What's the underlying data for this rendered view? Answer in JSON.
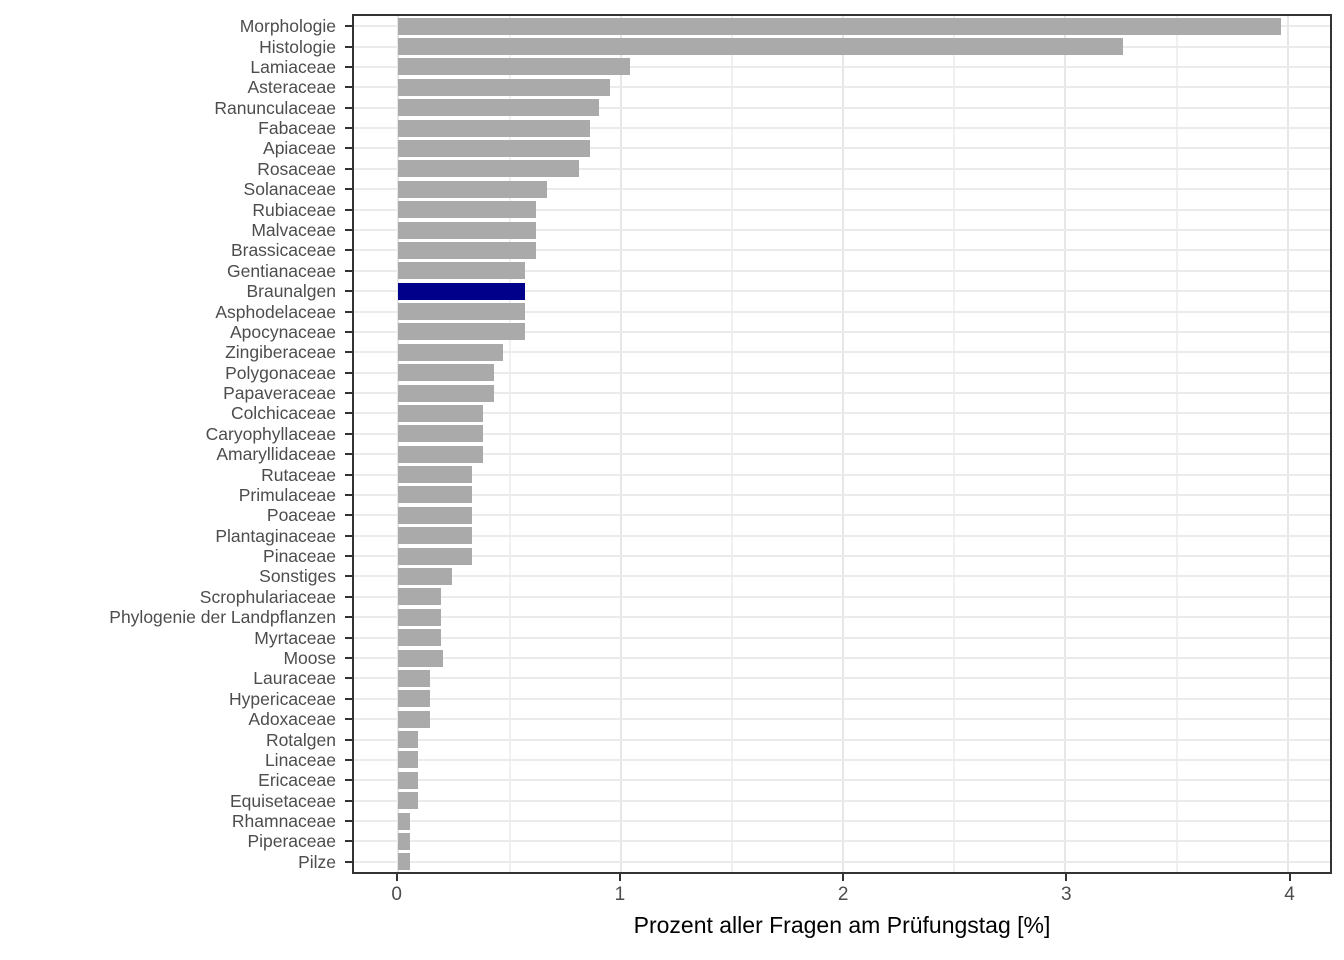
{
  "chart_data": {
    "type": "bar",
    "orientation": "horizontal",
    "title": "",
    "xlabel": "Prozent aller Fragen am Prüfungstag [%]",
    "ylabel": "",
    "xlim": [
      -0.2,
      4.19
    ],
    "x_ticks": [
      0,
      1,
      2,
      3,
      4
    ],
    "x_minor_ticks": [
      0.5,
      1.5,
      2.5,
      3.5
    ],
    "grid": true,
    "legend": "none",
    "bar_color": "#aaaaaa",
    "highlight_color": "#00008b",
    "highlighted_category": "Braunalgen",
    "categories": [
      "Morphologie",
      "Histologie",
      "Lamiaceae",
      "Asteraceae",
      "Ranunculaceae",
      "Fabaceae",
      "Apiaceae",
      "Rosaceae",
      "Solanaceae",
      "Rubiaceae",
      "Malvaceae",
      "Brassicaceae",
      "Gentianaceae",
      "Braunalgen",
      "Asphodelaceae",
      "Apocynaceae",
      "Zingiberaceae",
      "Polygonaceae",
      "Papaveraceae",
      "Colchicaceae",
      "Caryophyllaceae",
      "Amaryllidaceae",
      "Rutaceae",
      "Primulaceae",
      "Poaceae",
      "Plantaginaceae",
      "Pinaceae",
      "Sonstiges",
      "Scrophulariaceae",
      "Phylogenie der Landpflanzen",
      "Myrtaceae",
      "Moose",
      "Lauraceae",
      "Hypericaceae",
      "Adoxaceae",
      "Rotalgen",
      "Linaceae",
      "Ericaceae",
      "Equisetaceae",
      "Rhamnaceae",
      "Piperaceae",
      "Pilze"
    ],
    "values": [
      3.97,
      3.26,
      1.04,
      0.95,
      0.9,
      0.86,
      0.86,
      0.81,
      0.67,
      0.62,
      0.62,
      0.62,
      0.57,
      0.57,
      0.57,
      0.57,
      0.47,
      0.43,
      0.43,
      0.38,
      0.38,
      0.38,
      0.33,
      0.33,
      0.33,
      0.33,
      0.33,
      0.24,
      0.19,
      0.19,
      0.19,
      0.2,
      0.14,
      0.14,
      0.14,
      0.09,
      0.09,
      0.09,
      0.09,
      0.05,
      0.05,
      0.05
    ]
  }
}
